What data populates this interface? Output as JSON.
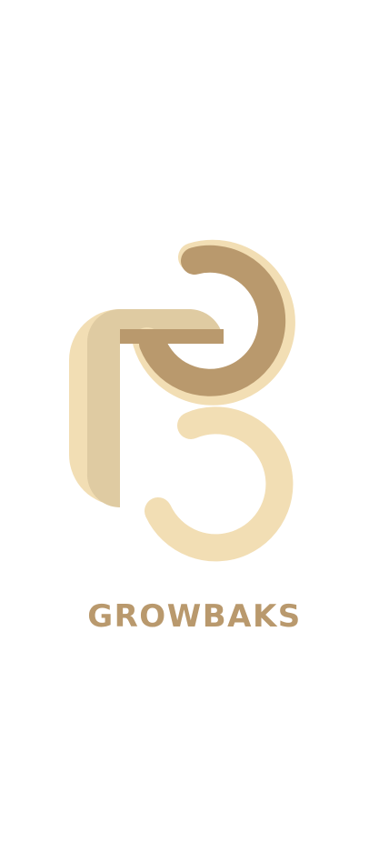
{
  "splash": {
    "brand_name": "GROWBAKS",
    "logo_icon": "growbaks-gb-monogram-icon"
  },
  "colors": {
    "background": "#ffffff",
    "brand_dark": "#b9996d",
    "brand_light": "#f2deb4",
    "brand_mid": "#dfcba2"
  }
}
